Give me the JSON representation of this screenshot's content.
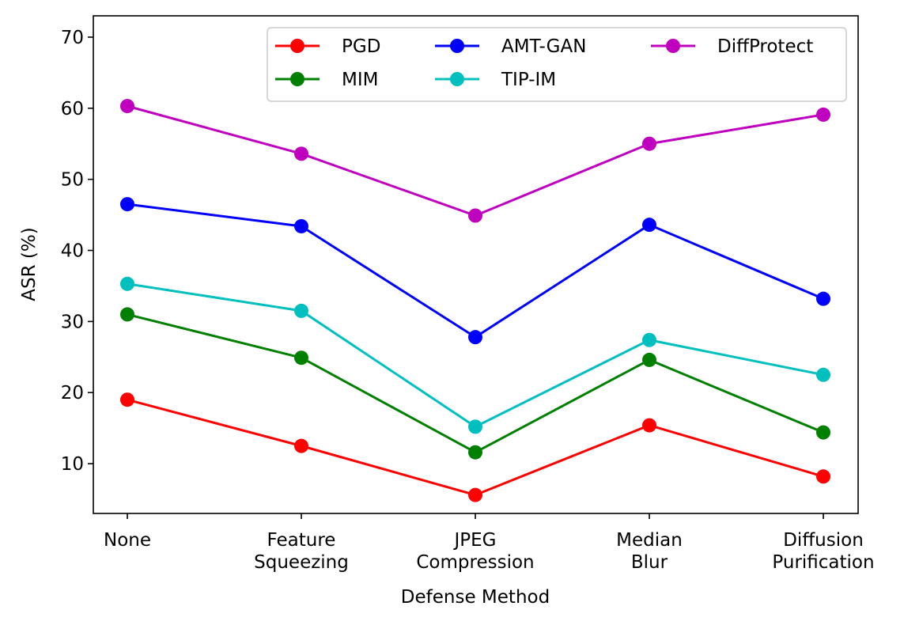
{
  "chart_data": {
    "type": "line",
    "xlabel": "Defense Method",
    "ylabel": "ASR (%)",
    "ylim": [
      3,
      73
    ],
    "yticks": [
      10,
      20,
      30,
      40,
      50,
      60,
      70
    ],
    "categories": [
      [
        "None"
      ],
      [
        "Feature",
        "Squeezing"
      ],
      [
        "JPEG",
        "Compression"
      ],
      [
        "Median",
        "Blur"
      ],
      [
        "Diffusion",
        "Purification"
      ]
    ],
    "series": [
      {
        "name": "PGD",
        "color": "#ff0000",
        "values": [
          19.0,
          12.5,
          5.6,
          15.4,
          8.2
        ]
      },
      {
        "name": "MIM",
        "color": "#008000",
        "values": [
          31.0,
          24.9,
          11.6,
          24.6,
          14.4
        ]
      },
      {
        "name": "AMT-GAN",
        "color": "#0000ff",
        "values": [
          46.5,
          43.4,
          27.8,
          43.6,
          33.2
        ]
      },
      {
        "name": "TIP-IM",
        "color": "#00bfbf",
        "values": [
          35.3,
          31.5,
          15.2,
          27.4,
          22.5
        ]
      },
      {
        "name": "DiffProtect",
        "color": "#bf00bf",
        "values": [
          60.3,
          53.6,
          44.9,
          55.0,
          59.1
        ]
      }
    ],
    "legend": {
      "location": "top-right",
      "columns": 3,
      "order": [
        "PGD",
        "MIM",
        "AMT-GAN",
        "TIP-IM",
        "DiffProtect"
      ]
    },
    "grid": false
  }
}
